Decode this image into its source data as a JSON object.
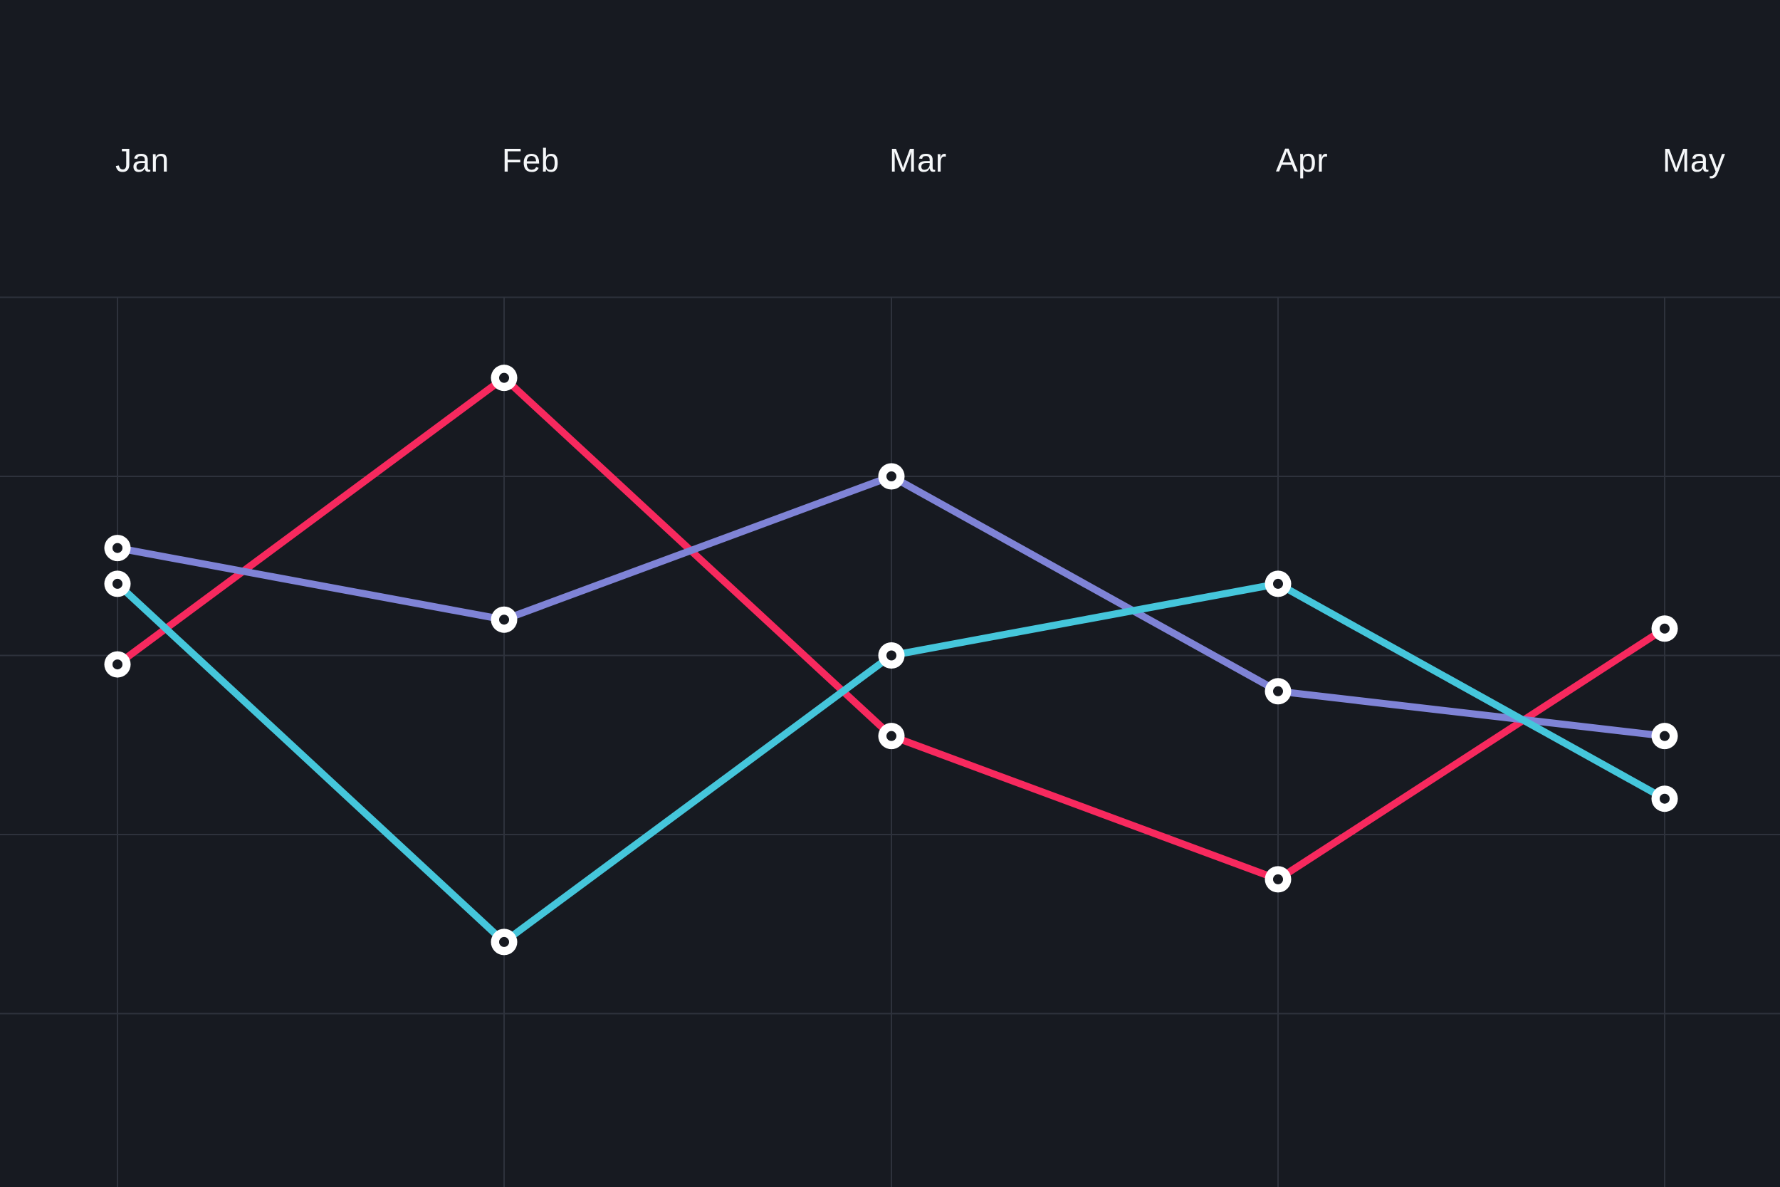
{
  "chart_data": {
    "type": "line",
    "title": "",
    "xlabel": "",
    "ylabel": "",
    "categories": [
      "Jan",
      "Feb",
      "Mar",
      "Apr",
      "May"
    ],
    "series": [
      {
        "name": "red",
        "color": "#F7295E",
        "values": [
          59,
          91,
          51,
          35,
          63
        ]
      },
      {
        "name": "purple",
        "color": "#7F83D6",
        "values": [
          72,
          64,
          80,
          56,
          51
        ]
      },
      {
        "name": "cyan",
        "color": "#45C6DB",
        "values": [
          68,
          28,
          60,
          68,
          44
        ]
      }
    ],
    "ylim": [
      0,
      120
    ],
    "gridlines": {
      "horizontal_values": [
        100,
        80,
        60,
        40,
        20
      ],
      "vertical_at_categories": true
    },
    "axis_tick_labels_visible": false,
    "legend": "none"
  },
  "colors": {
    "background": "#171A21",
    "gridline": "#2E323C",
    "label_text": "#F5F7F9",
    "marker_fill": "#FFFFFF",
    "marker_hole": "#171A21"
  },
  "style": {
    "line_width": 10,
    "marker_outer_radius": 18.5,
    "marker_hole_radius": 7
  }
}
